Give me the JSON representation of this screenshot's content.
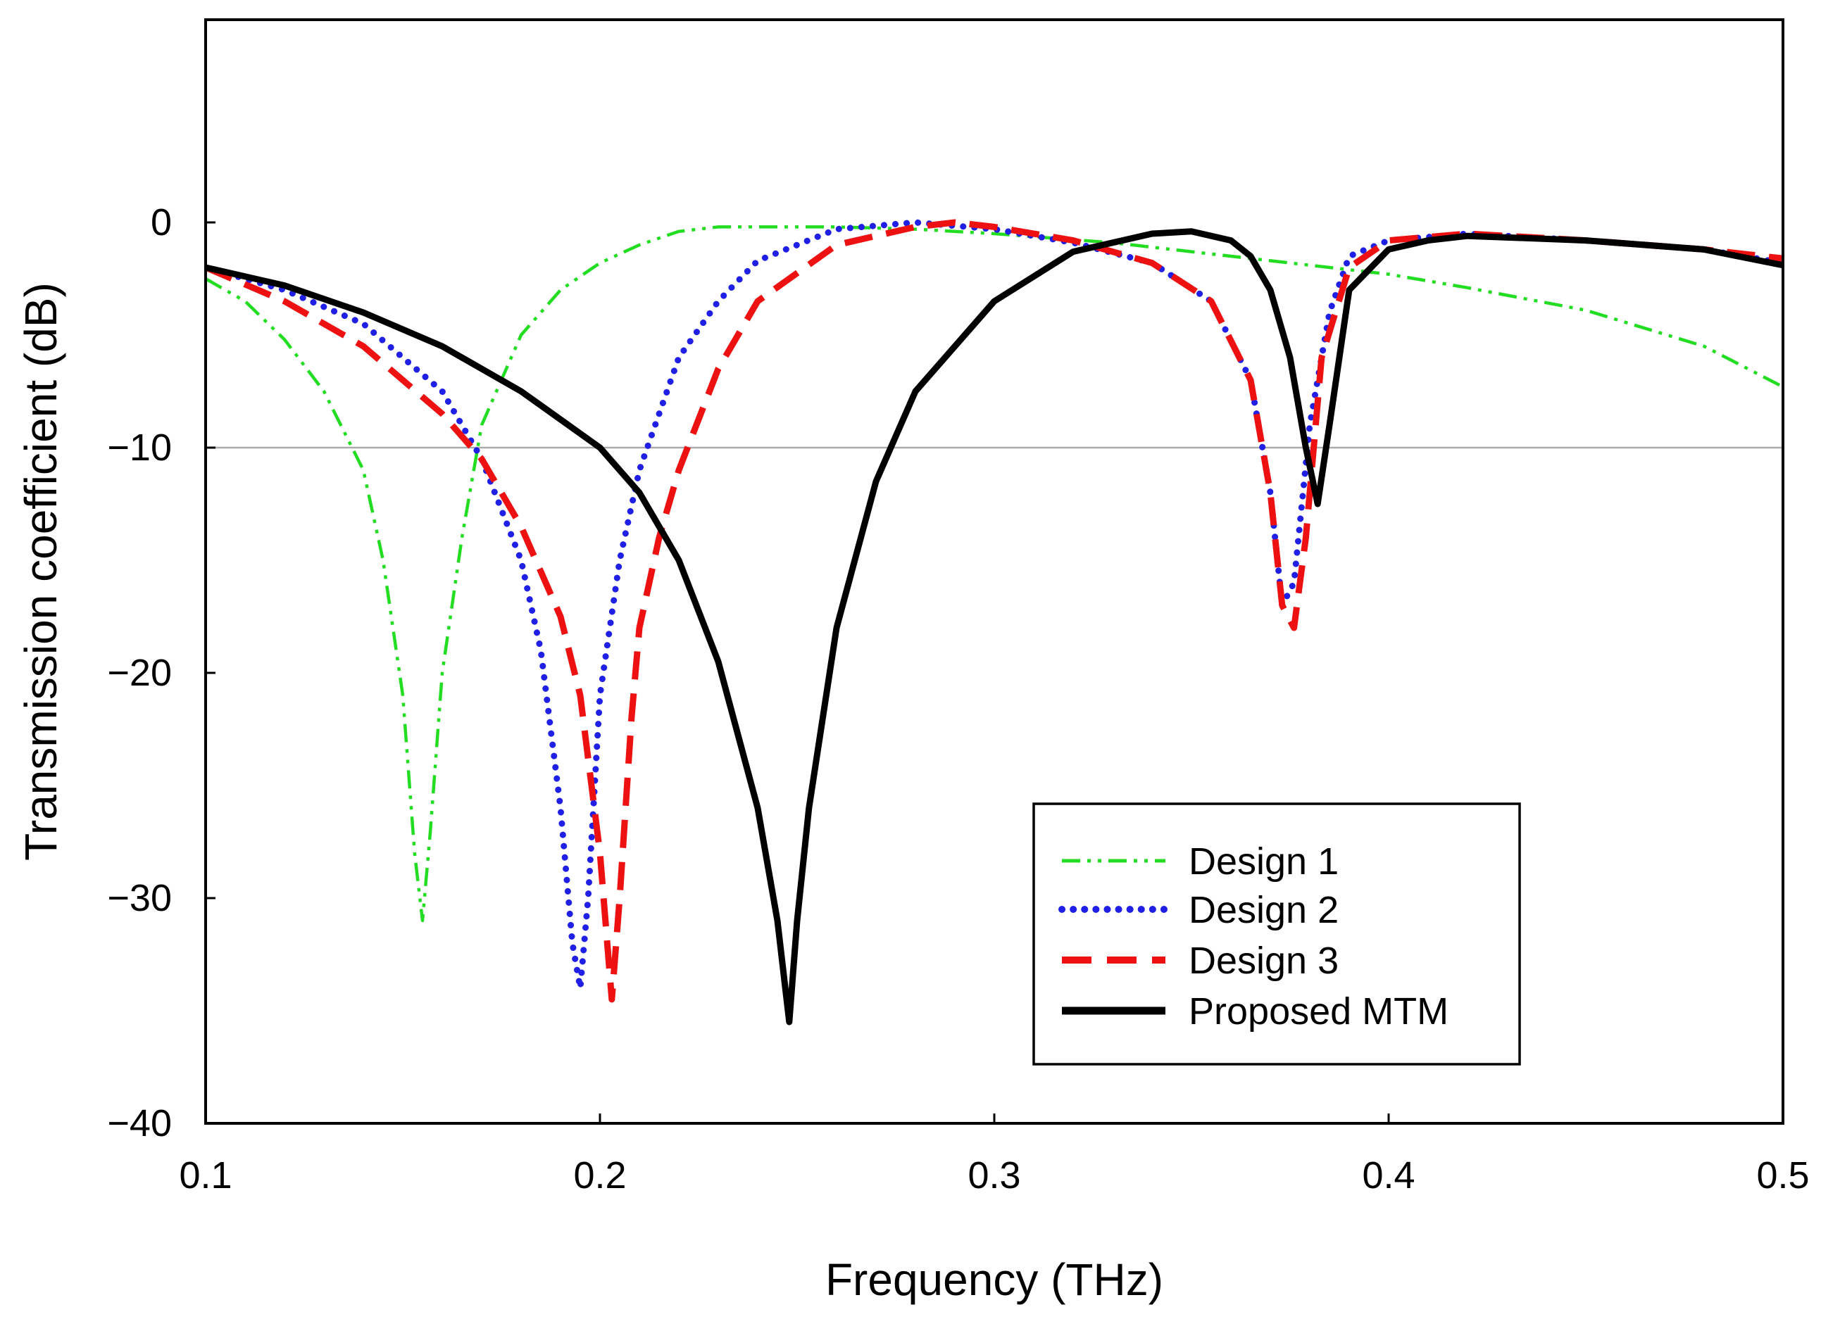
{
  "chart_data": {
    "type": "line",
    "title": "",
    "xlabel": "Frequency (THz)",
    "ylabel": "Transmission coefficient (dB)",
    "xlim": [
      0.1,
      0.5
    ],
    "ylim": [
      -40,
      9
    ],
    "xticks": [
      0.1,
      0.2,
      0.3,
      0.4,
      0.5
    ],
    "xtick_labels": [
      "0.1",
      "0.2",
      "0.3",
      "0.4",
      "0.5"
    ],
    "yticks": [
      0,
      -10,
      -20,
      -30,
      -40
    ],
    "ytick_labels": [
      "0",
      "−10",
      "−20",
      "−30",
      "−40"
    ],
    "reference_line": {
      "y": -10,
      "color": "#aaaaaa"
    },
    "legend_position": "bottom-right",
    "series": [
      {
        "name": "Design 1",
        "color": "#22dd22",
        "style": "dash-dot-dot",
        "x": [
          0.1,
          0.11,
          0.12,
          0.13,
          0.14,
          0.145,
          0.15,
          0.153,
          0.155,
          0.157,
          0.16,
          0.165,
          0.17,
          0.18,
          0.19,
          0.2,
          0.21,
          0.22,
          0.23,
          0.26,
          0.28,
          0.3,
          0.33,
          0.36,
          0.38,
          0.4,
          0.42,
          0.45,
          0.48,
          0.5
        ],
        "y": [
          -2.5,
          -3.5,
          -5.2,
          -7.5,
          -11,
          -15,
          -21,
          -28,
          -31,
          -27,
          -20,
          -14,
          -9,
          -5,
          -3,
          -1.8,
          -1,
          -0.4,
          -0.2,
          -0.2,
          -0.3,
          -0.5,
          -0.9,
          -1.5,
          -1.9,
          -2.3,
          -2.9,
          -3.9,
          -5.5,
          -7.3
        ]
      },
      {
        "name": "Design 2",
        "color": "#1f1fe6",
        "style": "dotted",
        "x": [
          0.1,
          0.12,
          0.14,
          0.16,
          0.17,
          0.18,
          0.185,
          0.19,
          0.193,
          0.195,
          0.197,
          0.2,
          0.205,
          0.21,
          0.22,
          0.23,
          0.24,
          0.26,
          0.28,
          0.3,
          0.32,
          0.34,
          0.355,
          0.365,
          0.37,
          0.373,
          0.376,
          0.38,
          0.385,
          0.39,
          0.4,
          0.42,
          0.45,
          0.48,
          0.5
        ],
        "y": [
          -2,
          -3,
          -4.5,
          -7.5,
          -10.5,
          -15,
          -19,
          -26,
          -32,
          -34,
          -30,
          -21,
          -15,
          -11,
          -6,
          -3.5,
          -1.7,
          -0.3,
          0,
          -0.3,
          -0.9,
          -1.8,
          -3.5,
          -7,
          -12,
          -17,
          -16,
          -9,
          -4,
          -1.5,
          -0.8,
          -0.5,
          -0.8,
          -1.2,
          -1.8
        ]
      },
      {
        "name": "Design 3",
        "color": "#ee1111",
        "style": "dashed",
        "x": [
          0.1,
          0.12,
          0.14,
          0.16,
          0.17,
          0.18,
          0.19,
          0.195,
          0.2,
          0.203,
          0.205,
          0.208,
          0.21,
          0.215,
          0.22,
          0.23,
          0.24,
          0.26,
          0.28,
          0.29,
          0.3,
          0.32,
          0.34,
          0.355,
          0.365,
          0.37,
          0.373,
          0.376,
          0.379,
          0.383,
          0.39,
          0.4,
          0.42,
          0.45,
          0.48,
          0.5
        ],
        "y": [
          -2,
          -3.5,
          -5.5,
          -8.5,
          -10.5,
          -13.5,
          -17.5,
          -21,
          -28,
          -34.5,
          -30,
          -22,
          -18,
          -14,
          -11,
          -6.5,
          -3.5,
          -1,
          -0.2,
          0,
          -0.2,
          -0.8,
          -1.8,
          -3.5,
          -7,
          -12,
          -17,
          -18,
          -14,
          -6,
          -2,
          -0.8,
          -0.5,
          -0.8,
          -1.2,
          -1.6
        ]
      },
      {
        "name": "Proposed MTM",
        "color": "#000000",
        "style": "solid",
        "x": [
          0.1,
          0.12,
          0.14,
          0.16,
          0.18,
          0.2,
          0.21,
          0.22,
          0.23,
          0.24,
          0.245,
          0.248,
          0.25,
          0.253,
          0.26,
          0.27,
          0.28,
          0.3,
          0.32,
          0.34,
          0.35,
          0.36,
          0.365,
          0.37,
          0.375,
          0.379,
          0.382,
          0.385,
          0.39,
          0.4,
          0.41,
          0.42,
          0.45,
          0.48,
          0.5
        ],
        "y": [
          -2,
          -2.8,
          -4,
          -5.5,
          -7.5,
          -10,
          -12,
          -15,
          -19.5,
          -26,
          -31,
          -35.5,
          -31,
          -26,
          -18,
          -11.5,
          -7.5,
          -3.5,
          -1.3,
          -0.5,
          -0.4,
          -0.8,
          -1.5,
          -3,
          -6,
          -10,
          -12.5,
          -9,
          -3,
          -1.2,
          -0.8,
          -0.6,
          -0.8,
          -1.2,
          -1.9
        ]
      }
    ]
  }
}
